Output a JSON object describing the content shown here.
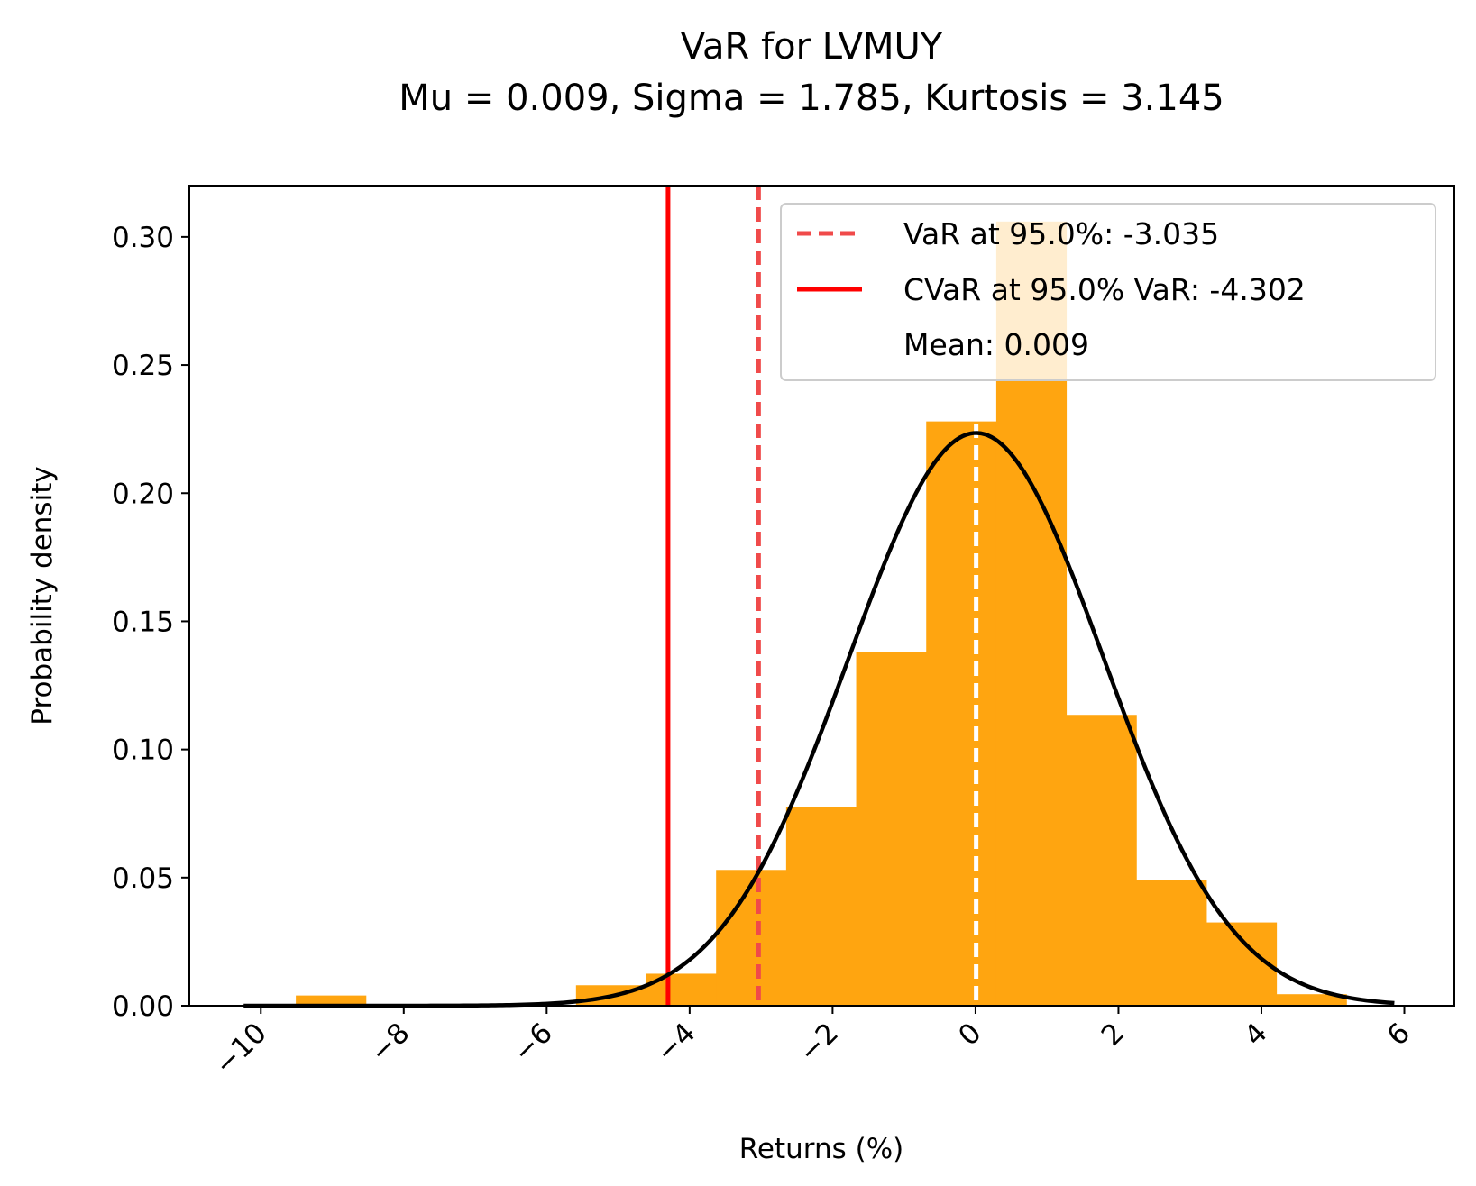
{
  "chart_data": {
    "type": "bar",
    "title": "VaR for LVMUY",
    "subtitle": "Mu = 0.009, Sigma = 1.785, Kurtosis = 3.145",
    "xlabel": "Returns (%)",
    "ylabel": "Probability density",
    "xlim": [
      -11.0,
      6.7
    ],
    "ylim": [
      0,
      0.32
    ],
    "x_ticks": [
      -10,
      -8,
      -6,
      -4,
      -2,
      0,
      2,
      4,
      6
    ],
    "x_tick_labels": [
      "−10",
      "−8",
      "−6",
      "−4",
      "−2",
      "0",
      "2",
      "4",
      "6"
    ],
    "y_ticks": [
      0.0,
      0.05,
      0.1,
      0.15,
      0.2,
      0.25,
      0.3
    ],
    "y_tick_labels": [
      "0.00",
      "0.05",
      "0.10",
      "0.15",
      "0.20",
      "0.25",
      "0.30"
    ],
    "x_tick_rotation": 45,
    "grid": false,
    "histogram": {
      "color": "#ffa510",
      "bins": [
        {
          "x0": -9.51,
          "x1": -8.53,
          "density": 0.004
        },
        {
          "x0": -8.53,
          "x1": -7.55,
          "density": 0.0
        },
        {
          "x0": -7.55,
          "x1": -6.57,
          "density": 0.0
        },
        {
          "x0": -6.57,
          "x1": -5.59,
          "density": 0.0
        },
        {
          "x0": -5.59,
          "x1": -4.61,
          "density": 0.008
        },
        {
          "x0": -4.61,
          "x1": -3.63,
          "density": 0.0125
        },
        {
          "x0": -3.63,
          "x1": -2.65,
          "density": 0.053
        },
        {
          "x0": -2.65,
          "x1": -1.67,
          "density": 0.0775
        },
        {
          "x0": -1.67,
          "x1": -0.69,
          "density": 0.138
        },
        {
          "x0": -0.69,
          "x1": 0.29,
          "density": 0.228
        },
        {
          "x0": 0.29,
          "x1": 1.27,
          "density": 0.306
        },
        {
          "x0": 1.27,
          "x1": 2.25,
          "density": 0.1135
        },
        {
          "x0": 2.25,
          "x1": 3.23,
          "density": 0.049
        },
        {
          "x0": 3.23,
          "x1": 4.21,
          "density": 0.0325
        },
        {
          "x0": 4.21,
          "x1": 5.19,
          "density": 0.0045
        }
      ]
    },
    "pdf_curve": {
      "type": "line",
      "distribution": "normal",
      "mu": 0.009,
      "sigma": 1.785,
      "x_range": [
        -10.24,
        5.86
      ],
      "color": "#000000"
    },
    "lines": [
      {
        "name": "VaR at 95.0%: -3.035",
        "x": -3.035,
        "style": "dashed",
        "color": "#f04a4a"
      },
      {
        "name": "CVaR at 95.0% VaR: -4.302",
        "x": -4.302,
        "style": "solid",
        "color": "#ff0000"
      },
      {
        "name": "Mean: 0.009",
        "x": 0.009,
        "style": "dashed",
        "color": "#ffffff"
      }
    ],
    "legend": {
      "placement": "top-right",
      "entries": [
        "VaR at 95.0%: -3.035",
        "CVaR at 95.0% VaR: -4.302",
        "Mean: 0.009"
      ]
    }
  }
}
